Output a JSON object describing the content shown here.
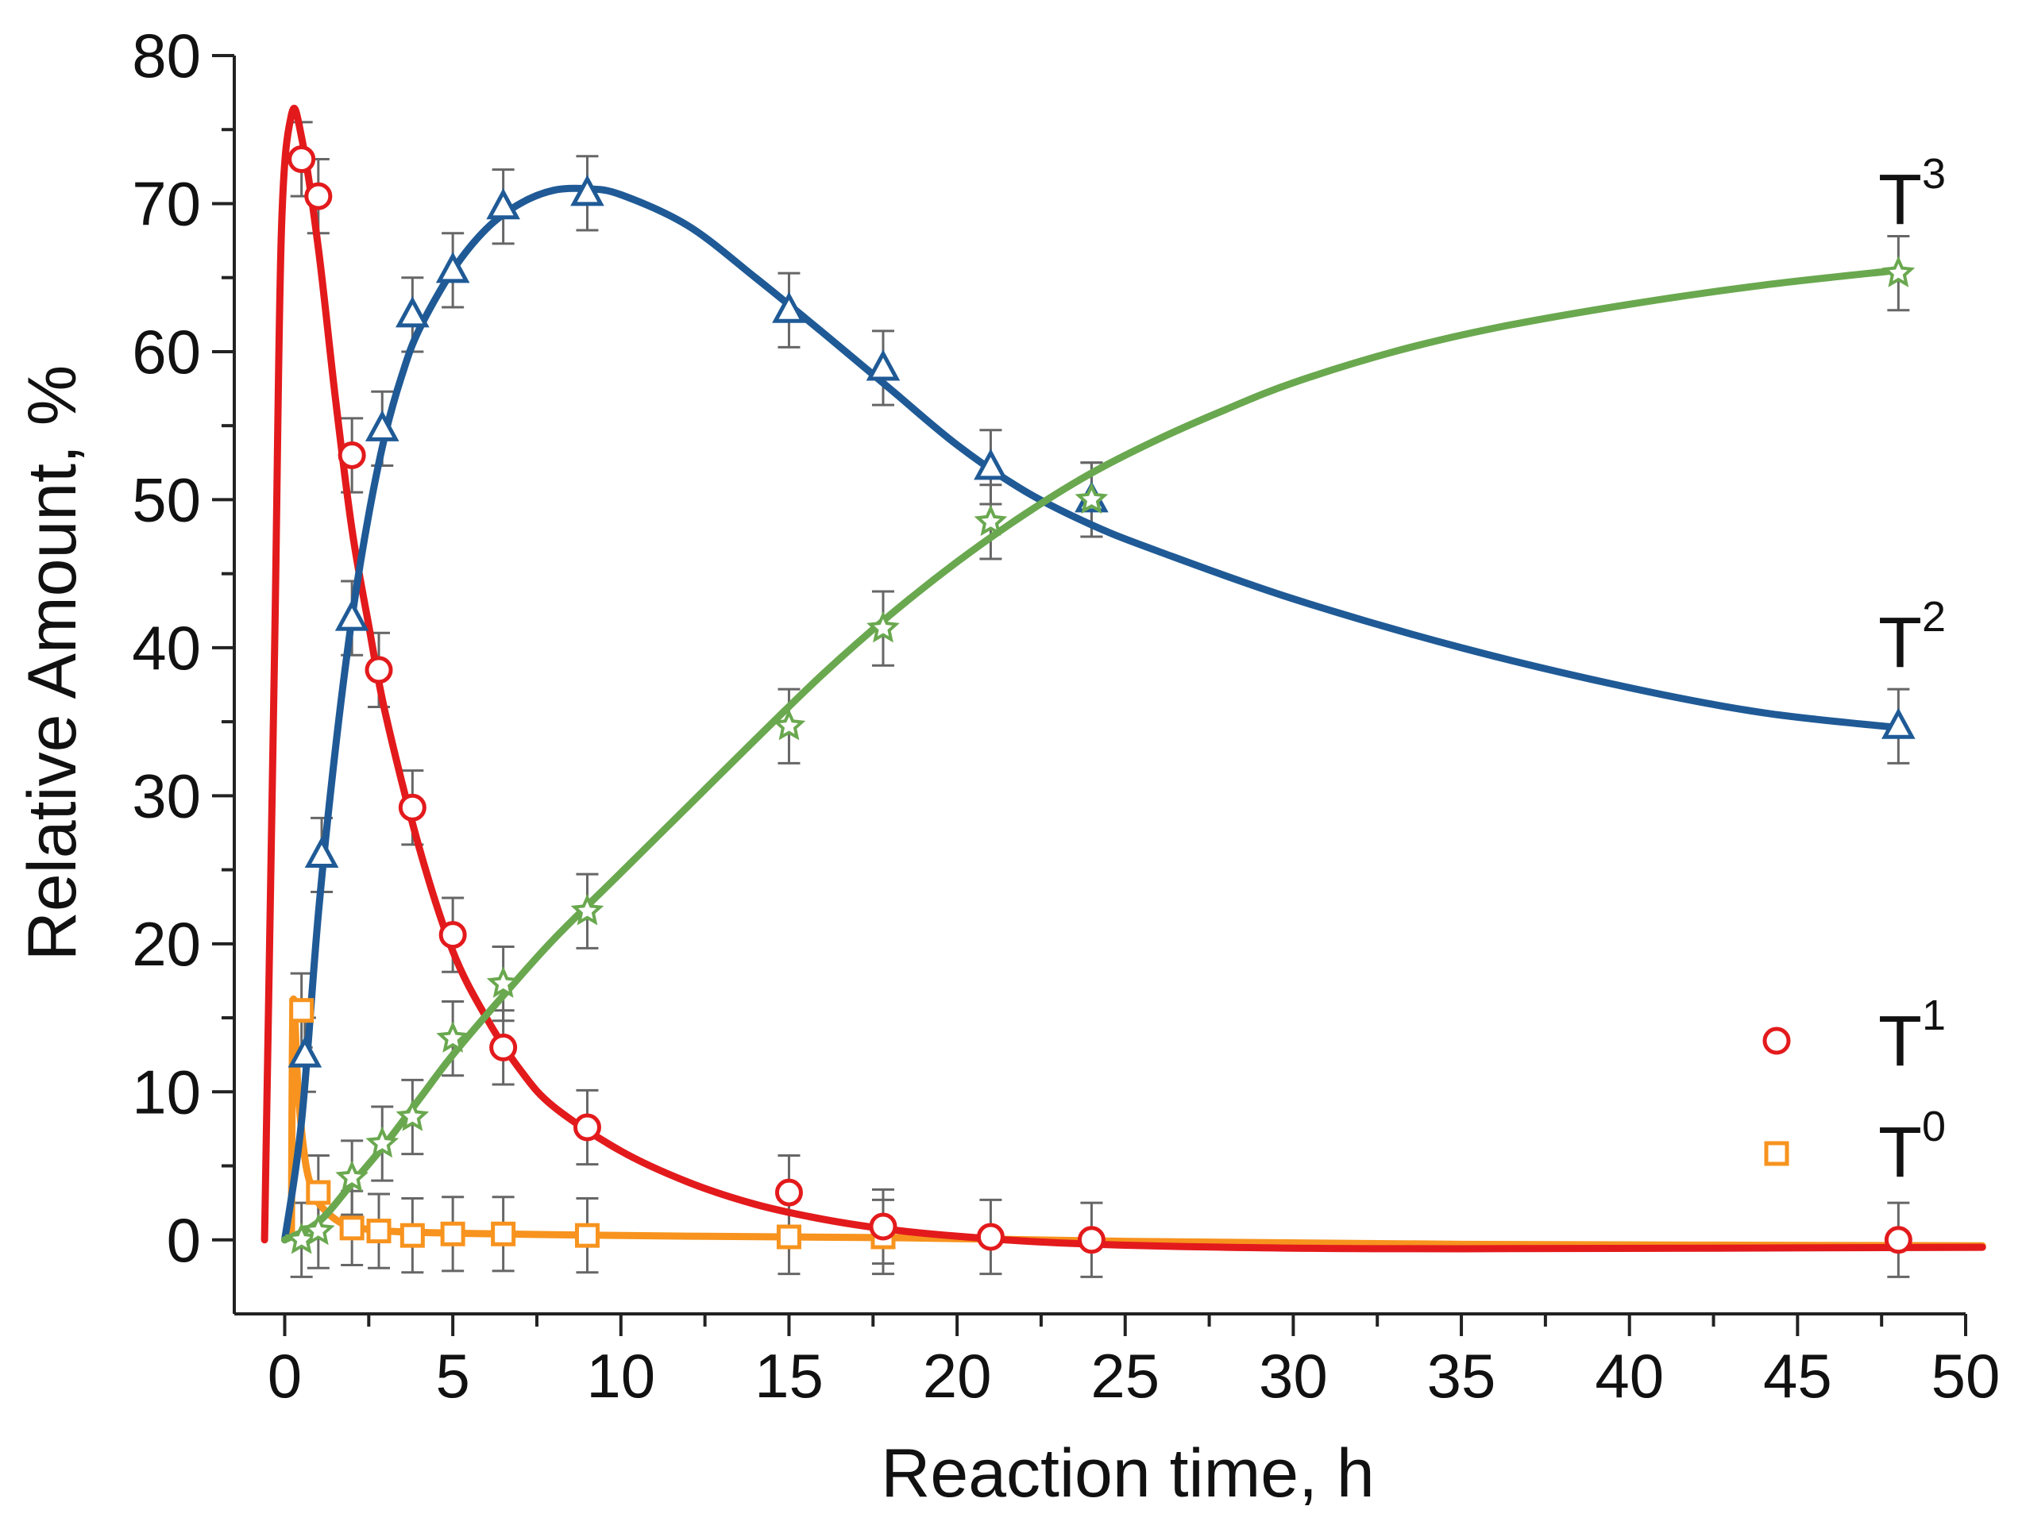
{
  "chart_data": {
    "type": "scatter",
    "xlabel": "Reaction time, h",
    "ylabel": "Relative Amount, %",
    "xlim": [
      -1.5,
      50
    ],
    "ylim": [
      -5,
      80
    ],
    "xticks": [
      0,
      5,
      10,
      15,
      20,
      25,
      30,
      35,
      40,
      45,
      50
    ],
    "yticks": [
      0,
      10,
      20,
      30,
      40,
      50,
      60,
      70,
      80
    ],
    "series": [
      {
        "name": "T0",
        "label_main": "T",
        "label_sup": "0",
        "marker": "square",
        "color": "#f7931e",
        "legend": true,
        "points": [
          {
            "x": 0.5,
            "y": 15.5
          },
          {
            "x": 1.0,
            "y": 3.2
          },
          {
            "x": 2.0,
            "y": 0.8
          },
          {
            "x": 2.8,
            "y": 0.6
          },
          {
            "x": 3.8,
            "y": 0.3
          },
          {
            "x": 5.0,
            "y": 0.4
          },
          {
            "x": 6.5,
            "y": 0.4
          },
          {
            "x": 9.0,
            "y": 0.3
          },
          {
            "x": 15.0,
            "y": 0.2
          },
          {
            "x": 17.8,
            "y": 0.2
          }
        ],
        "curve": [
          {
            "x": 0.2,
            "y": 0.5
          },
          {
            "x": 0.25,
            "y": 16.0
          },
          {
            "x": 0.4,
            "y": 10.0
          },
          {
            "x": 0.6,
            "y": 5.5
          },
          {
            "x": 0.8,
            "y": 3.5
          },
          {
            "x": 1.0,
            "y": 2.5
          },
          {
            "x": 1.5,
            "y": 1.4
          },
          {
            "x": 2.0,
            "y": 0.9
          },
          {
            "x": 3.0,
            "y": 0.6
          },
          {
            "x": 5.0,
            "y": 0.45
          },
          {
            "x": 8.0,
            "y": 0.35
          },
          {
            "x": 12.0,
            "y": 0.25
          },
          {
            "x": 18.0,
            "y": 0.15
          },
          {
            "x": 25.0,
            "y": -0.1
          },
          {
            "x": 35.0,
            "y": -0.3
          },
          {
            "x": 50.5,
            "y": -0.4
          }
        ]
      },
      {
        "name": "T1",
        "label_main": "T",
        "label_sup": "1",
        "marker": "circle",
        "color": "#e31a1c",
        "legend": true,
        "points": [
          {
            "x": 0.5,
            "y": 73.0
          },
          {
            "x": 1.0,
            "y": 70.5
          },
          {
            "x": 2.0,
            "y": 53.0
          },
          {
            "x": 2.8,
            "y": 38.5
          },
          {
            "x": 3.8,
            "y": 29.2
          },
          {
            "x": 5.0,
            "y": 20.6
          },
          {
            "x": 6.5,
            "y": 13.0
          },
          {
            "x": 9.0,
            "y": 7.6
          },
          {
            "x": 15.0,
            "y": 3.2
          },
          {
            "x": 17.8,
            "y": 0.9
          },
          {
            "x": 21.0,
            "y": 0.2
          },
          {
            "x": 24.0,
            "y": 0.0
          },
          {
            "x": 48.0,
            "y": 0.0
          }
        ],
        "curve": [
          {
            "x": -0.6,
            "y": 0.0
          },
          {
            "x": -0.3,
            "y": 40.0
          },
          {
            "x": -0.1,
            "y": 68.0
          },
          {
            "x": 0.2,
            "y": 76.0
          },
          {
            "x": 0.5,
            "y": 74.5
          },
          {
            "x": 1.0,
            "y": 67.0
          },
          {
            "x": 1.5,
            "y": 57.0
          },
          {
            "x": 2.0,
            "y": 48.0
          },
          {
            "x": 2.5,
            "y": 41.5
          },
          {
            "x": 3.0,
            "y": 35.5
          },
          {
            "x": 4.0,
            "y": 26.5
          },
          {
            "x": 5.0,
            "y": 19.5
          },
          {
            "x": 6.0,
            "y": 15.0
          },
          {
            "x": 7.0,
            "y": 11.5
          },
          {
            "x": 8.0,
            "y": 9.0
          },
          {
            "x": 10.0,
            "y": 6.0
          },
          {
            "x": 12.0,
            "y": 3.9
          },
          {
            "x": 14.0,
            "y": 2.4
          },
          {
            "x": 16.0,
            "y": 1.4
          },
          {
            "x": 18.0,
            "y": 0.7
          },
          {
            "x": 20.0,
            "y": 0.25
          },
          {
            "x": 23.0,
            "y": -0.2
          },
          {
            "x": 28.0,
            "y": -0.5
          },
          {
            "x": 35.0,
            "y": -0.6
          },
          {
            "x": 50.5,
            "y": -0.5
          }
        ]
      },
      {
        "name": "T2",
        "label_main": "T",
        "label_sup": "2",
        "marker": "triangle",
        "color": "#1f5a96",
        "legend": false,
        "points": [
          {
            "x": 0.6,
            "y": 12.5
          },
          {
            "x": 1.1,
            "y": 26.0
          },
          {
            "x": 2.0,
            "y": 42.0
          },
          {
            "x": 2.9,
            "y": 54.8
          },
          {
            "x": 3.8,
            "y": 62.5
          },
          {
            "x": 5.0,
            "y": 65.5
          },
          {
            "x": 6.5,
            "y": 69.8
          },
          {
            "x": 9.0,
            "y": 70.7
          },
          {
            "x": 15.0,
            "y": 62.8
          },
          {
            "x": 17.8,
            "y": 58.9
          },
          {
            "x": 21.0,
            "y": 52.2
          },
          {
            "x": 24.0,
            "y": 50.0
          },
          {
            "x": 48.0,
            "y": 34.7
          }
        ],
        "curve": [
          {
            "x": 0.0,
            "y": 0.0
          },
          {
            "x": 0.5,
            "y": 8.0
          },
          {
            "x": 1.0,
            "y": 22.0
          },
          {
            "x": 1.5,
            "y": 33.0
          },
          {
            "x": 2.0,
            "y": 42.0
          },
          {
            "x": 2.5,
            "y": 49.0
          },
          {
            "x": 3.0,
            "y": 54.5
          },
          {
            "x": 3.5,
            "y": 58.5
          },
          {
            "x": 4.0,
            "y": 61.5
          },
          {
            "x": 5.0,
            "y": 65.5
          },
          {
            "x": 6.0,
            "y": 68.3
          },
          {
            "x": 7.0,
            "y": 70.0
          },
          {
            "x": 8.0,
            "y": 70.9
          },
          {
            "x": 9.0,
            "y": 71.0
          },
          {
            "x": 10.0,
            "y": 70.6
          },
          {
            "x": 12.0,
            "y": 68.5
          },
          {
            "x": 14.0,
            "y": 65.0
          },
          {
            "x": 16.0,
            "y": 61.3
          },
          {
            "x": 18.0,
            "y": 57.5
          },
          {
            "x": 20.0,
            "y": 53.7
          },
          {
            "x": 22.0,
            "y": 50.6
          },
          {
            "x": 24.0,
            "y": 48.3
          },
          {
            "x": 26.0,
            "y": 46.5
          },
          {
            "x": 30.0,
            "y": 43.3
          },
          {
            "x": 35.0,
            "y": 40.0
          },
          {
            "x": 40.0,
            "y": 37.3
          },
          {
            "x": 44.0,
            "y": 35.6
          },
          {
            "x": 48.0,
            "y": 34.6
          }
        ]
      },
      {
        "name": "T3",
        "label_main": "T",
        "label_sup": "3",
        "marker": "star",
        "color": "#6aa84f",
        "legend": false,
        "points": [
          {
            "x": 0.5,
            "y": 0.0
          },
          {
            "x": 1.0,
            "y": 0.6
          },
          {
            "x": 2.0,
            "y": 4.2
          },
          {
            "x": 2.9,
            "y": 6.5
          },
          {
            "x": 3.8,
            "y": 8.3
          },
          {
            "x": 5.0,
            "y": 13.6
          },
          {
            "x": 6.5,
            "y": 17.3
          },
          {
            "x": 9.0,
            "y": 22.2
          },
          {
            "x": 15.0,
            "y": 34.7
          },
          {
            "x": 17.8,
            "y": 41.3
          },
          {
            "x": 21.0,
            "y": 48.5
          },
          {
            "x": 24.0,
            "y": 50.0
          },
          {
            "x": 48.0,
            "y": 65.3
          }
        ],
        "curve": [
          {
            "x": 0.0,
            "y": 0.0
          },
          {
            "x": 1.0,
            "y": 1.2
          },
          {
            "x": 2.0,
            "y": 3.8
          },
          {
            "x": 3.0,
            "y": 6.5
          },
          {
            "x": 4.0,
            "y": 9.5
          },
          {
            "x": 5.0,
            "y": 12.5
          },
          {
            "x": 6.5,
            "y": 16.5
          },
          {
            "x": 8.0,
            "y": 20.3
          },
          {
            "x": 10.0,
            "y": 24.8
          },
          {
            "x": 12.0,
            "y": 29.3
          },
          {
            "x": 14.0,
            "y": 33.8
          },
          {
            "x": 16.0,
            "y": 38.2
          },
          {
            "x": 18.0,
            "y": 42.2
          },
          {
            "x": 20.0,
            "y": 45.8
          },
          {
            "x": 22.0,
            "y": 49.0
          },
          {
            "x": 24.0,
            "y": 51.8
          },
          {
            "x": 26.0,
            "y": 54.1
          },
          {
            "x": 28.0,
            "y": 56.1
          },
          {
            "x": 30.0,
            "y": 57.9
          },
          {
            "x": 33.0,
            "y": 60.0
          },
          {
            "x": 36.0,
            "y": 61.6
          },
          {
            "x": 40.0,
            "y": 63.2
          },
          {
            "x": 44.0,
            "y": 64.5
          },
          {
            "x": 48.0,
            "y": 65.5
          }
        ]
      }
    ],
    "error_bar": 2.5
  }
}
